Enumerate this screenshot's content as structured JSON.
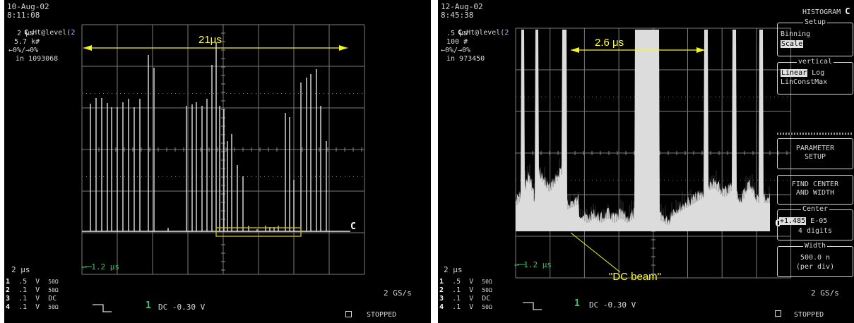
{
  "left": {
    "date": "10-Aug-02",
    "time": "8:11:08",
    "trace_id": "C",
    "trace_func": ":Ht@level(",
    "trace_src": "2",
    "trace_line1": "2 μs",
    "trace_line2": "5.7 k#",
    "trace_line3": "←0%/→0%",
    "trace_line4": "in 1093068",
    "measure_label": "21μs",
    "ref_marker": "C",
    "cursor_label": "← 1.2 μs",
    "timebase": "2 μs",
    "channels": [
      {
        "num": "1",
        "volts": ".5",
        "unit": "V",
        "coupling": "50Ω"
      },
      {
        "num": "2",
        "volts": ".1",
        "unit": "V",
        "coupling": "50Ω"
      },
      {
        "num": "3",
        "volts": ".1",
        "unit": "V",
        "coupling": "DC"
      },
      {
        "num": "4",
        "volts": ".1",
        "unit": "V",
        "coupling": "50Ω"
      }
    ],
    "trigger_channel": "1",
    "trigger_text": "DC -0.30 V",
    "sample_rate": "2 GS/s",
    "status": "STOPPED"
  },
  "right": {
    "date": "12-Aug-02",
    "time": "8:45:38",
    "trace_id": "C",
    "trace_func": ":Ht@level(",
    "trace_src": "2",
    "trace_line1": ".5 μs",
    "trace_line2": "100 #",
    "trace_line3": "←0%/→0%",
    "trace_line4": "in 973450",
    "measure_label": "2.6 μs",
    "dc_beam_label": "\"DC beam\"",
    "ref_marker": "C",
    "cursor_label": "← 1.2 μs",
    "timebase": "2 μs",
    "channels": [
      {
        "num": "1",
        "volts": ".5",
        "unit": "V",
        "coupling": "50Ω"
      },
      {
        "num": "2",
        "volts": ".1",
        "unit": "V",
        "coupling": "50Ω"
      },
      {
        "num": "3",
        "volts": ".1",
        "unit": "V",
        "coupling": "DC"
      },
      {
        "num": "4",
        "volts": ".1",
        "unit": "V",
        "coupling": "50Ω"
      }
    ],
    "trigger_channel": "1",
    "trigger_text": "DC -0.30 V",
    "sample_rate": "2 GS/s",
    "status": "STOPPED",
    "menu": {
      "header": "HISTOGRAM",
      "header_id": "C",
      "setup_title": "Setup",
      "setup_binning": "Binning",
      "setup_scale": "Scale",
      "vertical_title": "vertical",
      "vertical_linear": "Linear",
      "vertical_log": "Log",
      "vertical_linconst": "LinConstMax",
      "param_line1": "PARAMETER",
      "param_line2": "SETUP",
      "find_line1": "FIND CENTER",
      "find_line2": "AND WIDTH",
      "center_title": "Center",
      "center_value": "+1.485",
      "center_exp": "E-05",
      "center_digits": "4 digits",
      "width_title": "Width",
      "width_value": "500.0 n",
      "width_unit": "(per div)"
    }
  }
}
